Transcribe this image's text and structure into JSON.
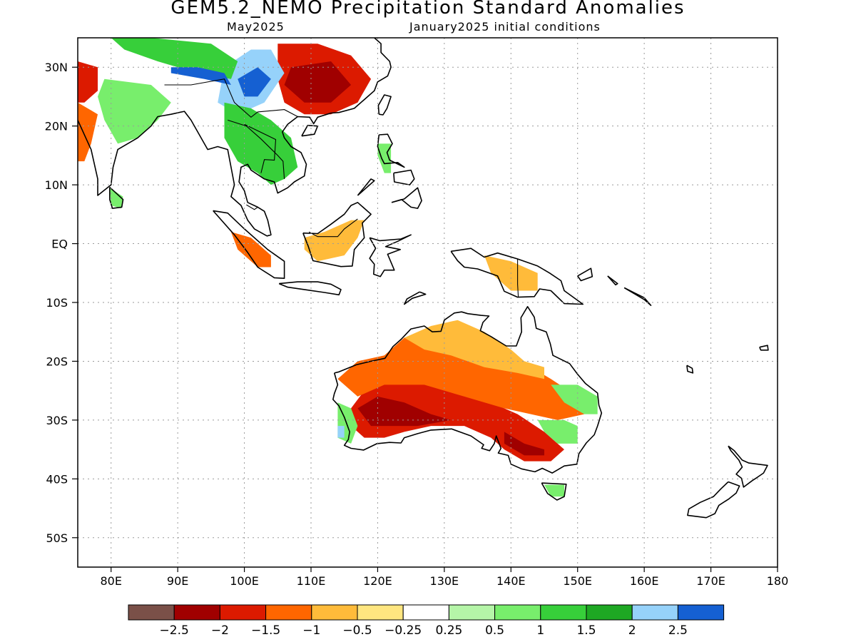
{
  "title": "GEM5.2_NEMO Precipitation Standard Anomalies",
  "subtitle_left": "May2025",
  "subtitle_right": "January2025 initial conditions",
  "map": {
    "lon_range": [
      75,
      180
    ],
    "lat_range": [
      -55,
      35
    ],
    "lat_ticks": [
      {
        "lat": 30,
        "label": "30N"
      },
      {
        "lat": 20,
        "label": "20N"
      },
      {
        "lat": 10,
        "label": "10N"
      },
      {
        "lat": 0,
        "label": "EQ"
      },
      {
        "lat": -10,
        "label": "10S"
      },
      {
        "lat": -20,
        "label": "20S"
      },
      {
        "lat": -30,
        "label": "30S"
      },
      {
        "lat": -40,
        "label": "40S"
      },
      {
        "lat": -50,
        "label": "50S"
      }
    ],
    "lon_ticks": [
      {
        "lon": 80,
        "label": "80E"
      },
      {
        "lon": 90,
        "label": "90E"
      },
      {
        "lon": 100,
        "label": "100E"
      },
      {
        "lon": 110,
        "label": "110E"
      },
      {
        "lon": 120,
        "label": "120E"
      },
      {
        "lon": 130,
        "label": "130E"
      },
      {
        "lon": 140,
        "label": "140E"
      },
      {
        "lon": 150,
        "label": "150E"
      },
      {
        "lon": 160,
        "label": "160E"
      },
      {
        "lon": 170,
        "label": "170E"
      },
      {
        "lon": 180,
        "label": "180"
      }
    ],
    "grid": "dotted"
  },
  "colorbar": {
    "colors": [
      "#7a5048",
      "#a00000",
      "#dc1a00",
      "#ff6600",
      "#ffbb3a",
      "#ffe680",
      "#ffffff",
      "#b5f5a8",
      "#78ee6c",
      "#37cf3a",
      "#1ea823",
      "#96d2fa",
      "#1560d2"
    ],
    "labels": [
      "−2.5",
      "−2",
      "−1.5",
      "−1",
      "−0.5",
      "−0.25",
      "0.25",
      "0.5",
      "1",
      "1.5",
      "2",
      "2.5"
    ]
  },
  "anomaly_regions": [
    {
      "region": "Australia interior / southwest",
      "category": 2,
      "shape": [
        [
          116,
          -28
        ],
        [
          118,
          -25
        ],
        [
          121,
          -23
        ],
        [
          125,
          -23
        ],
        [
          131,
          -25
        ],
        [
          137,
          -27
        ],
        [
          141,
          -29
        ],
        [
          145,
          -32
        ],
        [
          148,
          -35
        ],
        [
          146,
          -37
        ],
        [
          142,
          -37
        ],
        [
          139,
          -35
        ],
        [
          137,
          -33
        ],
        [
          133,
          -31
        ],
        [
          128,
          -31
        ],
        [
          124,
          -32
        ],
        [
          121,
          -33
        ],
        [
          118,
          -33
        ],
        [
          116,
          -31
        ]
      ]
    },
    {
      "region": "Australia southwest core",
      "category": 1,
      "shape": [
        [
          117,
          -28
        ],
        [
          120,
          -26
        ],
        [
          124,
          -27
        ],
        [
          128,
          -29
        ],
        [
          131,
          -30
        ],
        [
          126,
          -31
        ],
        [
          122,
          -31
        ],
        [
          119,
          -31
        ]
      ]
    },
    {
      "region": "Australia south coast",
      "category": 1,
      "shape": [
        [
          139,
          -32
        ],
        [
          142,
          -34
        ],
        [
          145,
          -35
        ],
        [
          145,
          -36
        ],
        [
          142,
          -36
        ],
        [
          139,
          -34
        ]
      ]
    },
    {
      "region": "Australia northwest",
      "category": 3,
      "shape": [
        [
          114,
          -23
        ],
        [
          117,
          -20
        ],
        [
          121,
          -19
        ],
        [
          124,
          -16
        ],
        [
          128,
          -15
        ],
        [
          132,
          -15
        ],
        [
          136,
          -17
        ],
        [
          140,
          -19
        ],
        [
          143,
          -21
        ],
        [
          146,
          -23
        ],
        [
          150,
          -26
        ],
        [
          151,
          -29
        ],
        [
          147,
          -30
        ],
        [
          143,
          -29
        ],
        [
          139,
          -28
        ],
        [
          133,
          -26
        ],
        [
          127,
          -24
        ],
        [
          121,
          -24
        ],
        [
          117,
          -26
        ]
      ]
    },
    {
      "region": "Australia north",
      "category": 4,
      "shape": [
        [
          124,
          -16
        ],
        [
          128,
          -14
        ],
        [
          132,
          -13
        ],
        [
          136,
          -15
        ],
        [
          140,
          -18
        ],
        [
          142,
          -20
        ],
        [
          145,
          -21
        ],
        [
          145,
          -23
        ],
        [
          141,
          -22
        ],
        [
          136,
          -21
        ],
        [
          131,
          -19
        ],
        [
          127,
          -18
        ]
      ]
    },
    {
      "region": "Australia east wet",
      "category": 8,
      "shape": [
        [
          146,
          -24
        ],
        [
          150,
          -24
        ],
        [
          153,
          -26
        ],
        [
          153,
          -29
        ],
        [
          151,
          -29
        ],
        [
          148,
          -27
        ]
      ]
    },
    {
      "region": "Australia southeast wet",
      "category": 8,
      "shape": [
        [
          144,
          -30
        ],
        [
          148,
          -30
        ],
        [
          150,
          -31
        ],
        [
          150,
          -34
        ],
        [
          147,
          -34
        ],
        [
          145,
          -32
        ]
      ]
    },
    {
      "region": "Australia southwest tip wet",
      "category": 8,
      "shape": [
        [
          114,
          -27
        ],
        [
          116,
          -28
        ],
        [
          117,
          -31
        ],
        [
          116,
          -34
        ],
        [
          114,
          -33
        ],
        [
          114,
          -30
        ]
      ]
    },
    {
      "region": "Australia southwest tip very wet",
      "category": 11,
      "shape": [
        [
          114,
          -31
        ],
        [
          115,
          -31
        ],
        [
          115,
          -33
        ],
        [
          114,
          -33
        ]
      ]
    },
    {
      "region": "South China",
      "category": 2,
      "shape": [
        [
          105,
          34
        ],
        [
          111,
          34
        ],
        [
          116,
          32
        ],
        [
          119,
          28
        ],
        [
          117,
          24
        ],
        [
          113,
          22
        ],
        [
          109,
          22
        ],
        [
          106,
          24
        ],
        [
          105,
          28
        ]
      ]
    },
    {
      "region": "South China core",
      "category": 1,
      "shape": [
        [
          107,
          30
        ],
        [
          113,
          31
        ],
        [
          116,
          27
        ],
        [
          113,
          24
        ],
        [
          109,
          24
        ],
        [
          106,
          27
        ]
      ]
    },
    {
      "region": "Yunnan / Myanmar wet",
      "category": 11,
      "shape": [
        [
          97,
          30
        ],
        [
          101,
          33
        ],
        [
          104,
          33
        ],
        [
          106,
          29
        ],
        [
          103,
          24
        ],
        [
          99,
          22
        ],
        [
          96,
          24
        ]
      ]
    },
    {
      "region": "Tibet / Yunnan very wet",
      "category": 12,
      "shape": [
        [
          99,
          28
        ],
        [
          102,
          30
        ],
        [
          104,
          28
        ],
        [
          102,
          25
        ],
        [
          100,
          25
        ]
      ]
    },
    {
      "region": "Indochina wet",
      "category": 9,
      "shape": [
        [
          97,
          24
        ],
        [
          101,
          23
        ],
        [
          104,
          21
        ],
        [
          107,
          18
        ],
        [
          108,
          13
        ],
        [
          106,
          11
        ],
        [
          104,
          10
        ],
        [
          102,
          12
        ],
        [
          99,
          14
        ],
        [
          97,
          18
        ]
      ]
    },
    {
      "region": "Himalaya wet",
      "category": 9,
      "shape": [
        [
          82,
          33
        ],
        [
          87,
          31
        ],
        [
          93,
          29
        ],
        [
          98,
          28
        ],
        [
          99,
          31
        ],
        [
          95,
          34
        ],
        [
          86,
          35
        ],
        [
          80,
          35
        ]
      ]
    },
    {
      "region": "Himalaya very wet",
      "category": 12,
      "shape": [
        [
          89,
          29
        ],
        [
          94,
          28
        ],
        [
          98,
          27
        ],
        [
          97,
          29
        ],
        [
          93,
          30
        ],
        [
          89,
          30
        ]
      ]
    },
    {
      "region": "India east wet",
      "category": 8,
      "shape": [
        [
          79,
          28
        ],
        [
          86,
          27
        ],
        [
          89,
          24
        ],
        [
          87,
          21
        ],
        [
          84,
          18
        ],
        [
          81,
          17
        ],
        [
          79,
          21
        ],
        [
          78,
          25
        ]
      ]
    },
    {
      "region": "India northwest dry",
      "category": 2,
      "shape": [
        [
          75,
          31
        ],
        [
          78,
          30
        ],
        [
          78,
          26
        ],
        [
          76,
          24
        ],
        [
          75,
          24
        ]
      ]
    },
    {
      "region": "India west dry",
      "category": 3,
      "shape": [
        [
          75,
          24
        ],
        [
          78,
          22
        ],
        [
          77,
          17
        ],
        [
          76,
          14
        ],
        [
          75,
          14
        ]
      ]
    },
    {
      "region": "Borneo dry",
      "category": 4,
      "shape": [
        [
          109,
          1
        ],
        [
          112,
          2
        ],
        [
          116,
          4
        ],
        [
          118,
          4
        ],
        [
          117,
          1
        ],
        [
          115,
          -2
        ],
        [
          111,
          -3
        ],
        [
          109,
          -1
        ]
      ]
    },
    {
      "region": "Sumatra dry",
      "category": 3,
      "shape": [
        [
          98,
          2
        ],
        [
          101,
          1
        ],
        [
          104,
          -2
        ],
        [
          104,
          -4
        ],
        [
          102,
          -4
        ],
        [
          99,
          -1
        ]
      ]
    },
    {
      "region": "New Guinea dry",
      "category": 4,
      "shape": [
        [
          136,
          -2
        ],
        [
          140,
          -3
        ],
        [
          144,
          -5
        ],
        [
          144,
          -8
        ],
        [
          140,
          -8
        ],
        [
          137,
          -5
        ]
      ]
    },
    {
      "region": "Philippines wet",
      "category": 8,
      "shape": [
        [
          120,
          17
        ],
        [
          122,
          17
        ],
        [
          122,
          12
        ],
        [
          121,
          12
        ],
        [
          120,
          15
        ]
      ]
    },
    {
      "region": "Tasmania wet",
      "category": 8,
      "shape": [
        [
          145,
          -41
        ],
        [
          148,
          -41
        ],
        [
          148,
          -43
        ],
        [
          146,
          -43
        ]
      ]
    },
    {
      "region": "Sri Lanka wet",
      "category": 8,
      "shape": [
        [
          79.8,
          9.5
        ],
        [
          81.8,
          8
        ],
        [
          81.5,
          6
        ],
        [
          80,
          6.5
        ]
      ]
    }
  ]
}
